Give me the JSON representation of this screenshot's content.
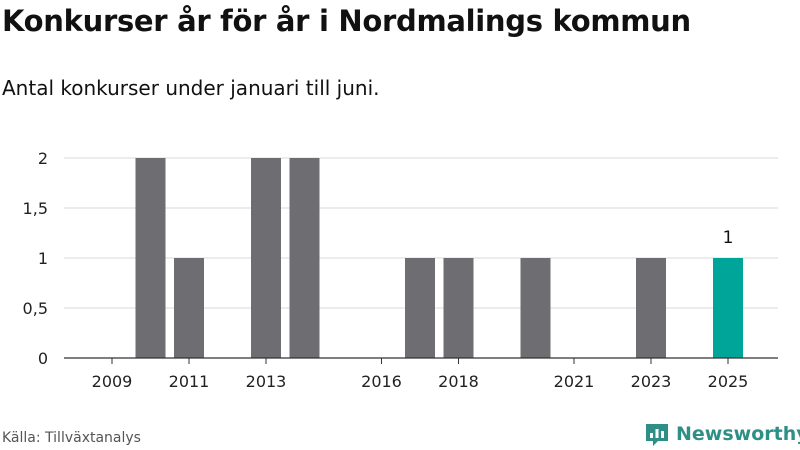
{
  "title": "Konkurser år för år i Nordmalings kommun",
  "subtitle": "Antal konkurser under januari till juni.",
  "source": "Källa: Tillväxtanalys",
  "brand": {
    "name": "Newsworthy",
    "icon": "newsworthy-logo-icon",
    "color": "#2e8f87"
  },
  "chart_data": {
    "type": "bar",
    "x": [
      2009,
      2010,
      2011,
      2012,
      2013,
      2014,
      2015,
      2016,
      2017,
      2018,
      2019,
      2020,
      2021,
      2022,
      2023,
      2024,
      2025
    ],
    "values": [
      0,
      2,
      1,
      0,
      2,
      2,
      0,
      0,
      1,
      1,
      0,
      1,
      0,
      0,
      1,
      0,
      1
    ],
    "xtick_labels": [
      "2009",
      "2011",
      "2013",
      "2016",
      "2018",
      "2021",
      "2023",
      "2025"
    ],
    "xtick_positions": [
      2009,
      2011,
      2013,
      2016,
      2018,
      2021,
      2023,
      2025
    ],
    "yticks": [
      0,
      0.5,
      1,
      1.5,
      2
    ],
    "ytick_labels": [
      "0",
      "0,5",
      "1",
      "1,5",
      "2"
    ],
    "ylim": [
      0,
      2
    ],
    "grid": true,
    "bar_color": "#6e6d72",
    "highlight_color": "#00a59a",
    "highlight_index": 16,
    "annotations": [
      {
        "x": 2025,
        "text": "1"
      }
    ]
  }
}
